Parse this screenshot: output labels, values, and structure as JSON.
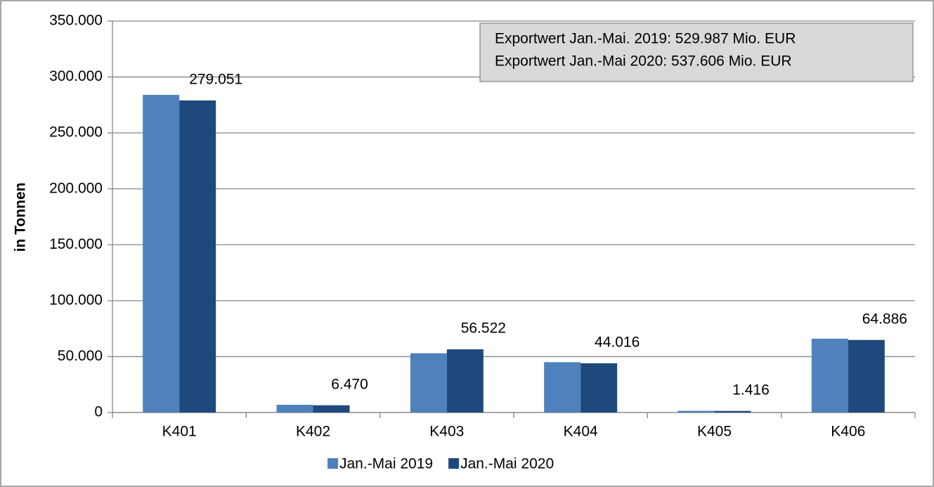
{
  "chart_data": {
    "type": "bar",
    "y_label": "in Tonnen",
    "annotation": [
      "Exportwert Jan.-Mai. 2019: 529.987 Mio. EUR",
      "Exportwert Jan.-Mai 2020: 537.606 Mio. EUR"
    ],
    "categories": [
      "K401",
      "K402",
      "K403",
      "K404",
      "K405",
      "K406"
    ],
    "series": [
      {
        "name": "Jan.-Mai 2019",
        "color": "#4f81bd",
        "values": [
          284000,
          6900,
          53000,
          45000,
          1500,
          66000
        ]
      },
      {
        "name": "Jan.-Mai 2020",
        "color": "#1f497d",
        "values": [
          279051,
          6470,
          56522,
          44016,
          1416,
          64886
        ],
        "value_labels": [
          "279.051",
          "6.470",
          "56.522",
          "44.016",
          "1.416",
          "64.886"
        ]
      }
    ],
    "ylim": [
      0,
      350000
    ],
    "yticks": [
      0,
      {
        "value": 50000,
        "label": "50.000"
      },
      {
        "value": 100000,
        "label": "100.000"
      },
      {
        "value": 150000,
        "label": "150.000"
      },
      {
        "value": 200000,
        "label": "200.000"
      },
      {
        "value": 250000,
        "label": "250.000"
      },
      {
        "value": 300000,
        "label": "300.000"
      },
      {
        "value": 350000,
        "label": "350.000"
      }
    ],
    "grid": true,
    "legend": "bottom"
  }
}
